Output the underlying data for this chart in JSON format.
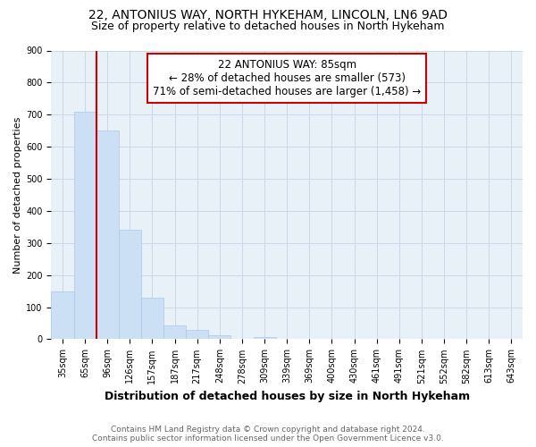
{
  "title": "22, ANTONIUS WAY, NORTH HYKEHAM, LINCOLN, LN6 9AD",
  "subtitle": "Size of property relative to detached houses in North Hykeham",
  "xlabel": "Distribution of detached houses by size in North Hykeham",
  "ylabel": "Number of detached properties",
  "bar_labels": [
    "35sqm",
    "65sqm",
    "96sqm",
    "126sqm",
    "157sqm",
    "187sqm",
    "217sqm",
    "248sqm",
    "278sqm",
    "309sqm",
    "339sqm",
    "369sqm",
    "400sqm",
    "430sqm",
    "461sqm",
    "491sqm",
    "521sqm",
    "552sqm",
    "582sqm",
    "613sqm",
    "643sqm"
  ],
  "bar_values": [
    150,
    710,
    650,
    340,
    130,
    42,
    30,
    12,
    0,
    8,
    0,
    0,
    0,
    0,
    0,
    0,
    0,
    0,
    0,
    0,
    0
  ],
  "bar_color": "#cce0f5",
  "bar_edgecolor": "#aac8e8",
  "property_line_color": "#cc0000",
  "annotation_text": "22 ANTONIUS WAY: 85sqm\n← 28% of detached houses are smaller (573)\n71% of semi-detached houses are larger (1,458) →",
  "annotation_box_color": "#ffffff",
  "annotation_box_edgecolor": "#cc0000",
  "ylim": [
    0,
    900
  ],
  "yticks": [
    0,
    100,
    200,
    300,
    400,
    500,
    600,
    700,
    800,
    900
  ],
  "grid_color": "#c8d8e8",
  "plot_background": "#e8f0f8",
  "footer_text": "Contains HM Land Registry data © Crown copyright and database right 2024.\nContains public sector information licensed under the Open Government Licence v3.0.",
  "title_fontsize": 10,
  "subtitle_fontsize": 9,
  "xlabel_fontsize": 9,
  "ylabel_fontsize": 8,
  "tick_fontsize": 7,
  "annotation_fontsize": 8.5,
  "footer_fontsize": 6.5
}
